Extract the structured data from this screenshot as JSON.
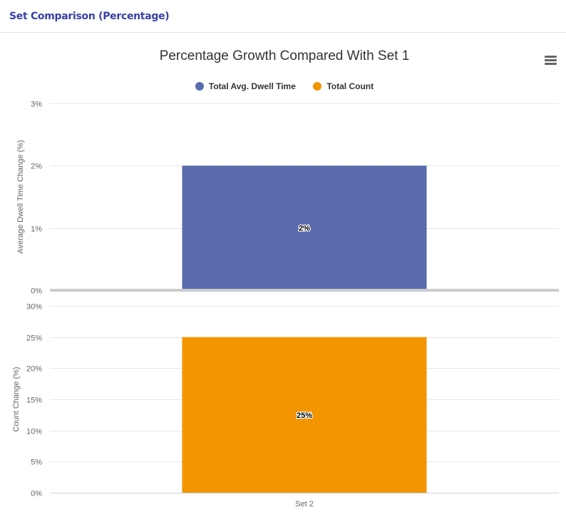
{
  "panel": {
    "title": "Set Comparison (Percentage)"
  },
  "chart_data": {
    "type": "bar",
    "title": "Percentage Growth Compared With Set 1",
    "categories": [
      "Set 2"
    ],
    "legend": {
      "position": "top-center"
    },
    "grid": true,
    "series": [
      {
        "name": "Total Avg. Dwell Time",
        "color": "#5a6aad",
        "values": [
          2
        ],
        "data_labels": [
          "2%"
        ],
        "ylabel": "Average Dwell Time Change (%)",
        "ylim": [
          0,
          3
        ],
        "yticks": [
          0,
          1,
          2,
          3
        ],
        "ytick_labels": [
          "0%",
          "1%",
          "2%",
          "3%"
        ]
      },
      {
        "name": "Total Count",
        "color": "#f29500",
        "values": [
          25
        ],
        "data_labels": [
          "25%"
        ],
        "ylabel": "Count Change (%)",
        "ylim": [
          0,
          30
        ],
        "yticks": [
          0,
          5,
          10,
          15,
          20,
          25,
          30
        ],
        "ytick_labels": [
          "0%",
          "5%",
          "10%",
          "15%",
          "20%",
          "25%",
          "30%"
        ]
      }
    ]
  }
}
